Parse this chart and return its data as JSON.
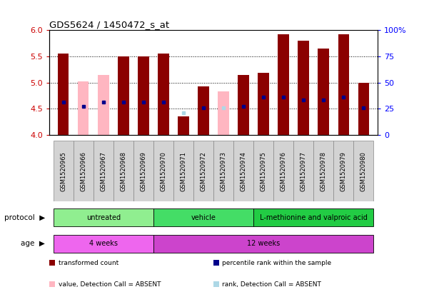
{
  "title": "GDS5624 / 1450472_s_at",
  "samples": [
    "GSM1520965",
    "GSM1520966",
    "GSM1520967",
    "GSM1520968",
    "GSM1520969",
    "GSM1520970",
    "GSM1520971",
    "GSM1520972",
    "GSM1520973",
    "GSM1520974",
    "GSM1520975",
    "GSM1520976",
    "GSM1520977",
    "GSM1520978",
    "GSM1520979",
    "GSM1520980"
  ],
  "bar_values": [
    5.55,
    5.02,
    5.15,
    5.5,
    5.5,
    5.55,
    4.35,
    4.92,
    4.83,
    5.15,
    5.18,
    5.92,
    5.8,
    5.65,
    5.92,
    5.0
  ],
  "bar_absent": [
    false,
    true,
    true,
    false,
    false,
    false,
    false,
    false,
    true,
    false,
    false,
    false,
    false,
    false,
    false,
    false
  ],
  "blue_dot_values": [
    4.63,
    4.55,
    4.63,
    4.63,
    4.63,
    4.63,
    4.42,
    4.52,
    4.52,
    4.55,
    4.72,
    4.72,
    4.67,
    4.67,
    4.72,
    4.52
  ],
  "blue_dot_absent": [
    false,
    false,
    false,
    false,
    false,
    false,
    true,
    false,
    true,
    false,
    false,
    false,
    false,
    false,
    false,
    false
  ],
  "ylim": [
    4.0,
    6.0
  ],
  "yticks": [
    4.0,
    4.5,
    5.0,
    5.5,
    6.0
  ],
  "right_yticks": [
    0,
    25,
    50,
    75,
    100
  ],
  "right_ylim": [
    0,
    100
  ],
  "bar_color_present": "#8B0000",
  "bar_color_absent": "#FFB6C1",
  "blue_color_present": "#00008B",
  "blue_color_absent": "#ADD8E6",
  "protocol_groups": [
    {
      "label": "untreated",
      "start": 0,
      "end": 4,
      "color": "#90EE90"
    },
    {
      "label": "vehicle",
      "start": 5,
      "end": 9,
      "color": "#44DD66"
    },
    {
      "label": "L-methionine and valproic acid",
      "start": 10,
      "end": 15,
      "color": "#22CC44"
    }
  ],
  "age_groups": [
    {
      "label": "4 weeks",
      "start": 0,
      "end": 4,
      "color": "#EE66EE"
    },
    {
      "label": "12 weeks",
      "start": 5,
      "end": 15,
      "color": "#CC44CC"
    }
  ],
  "legend_items": [
    {
      "label": "transformed count",
      "color": "#8B0000"
    },
    {
      "label": "percentile rank within the sample",
      "color": "#00008B"
    },
    {
      "label": "value, Detection Call = ABSENT",
      "color": "#FFB6C1"
    },
    {
      "label": "rank, Detection Call = ABSENT",
      "color": "#ADD8E6"
    }
  ],
  "bar_width": 0.55,
  "figsize": [
    6.01,
    4.23
  ],
  "dpi": 100
}
